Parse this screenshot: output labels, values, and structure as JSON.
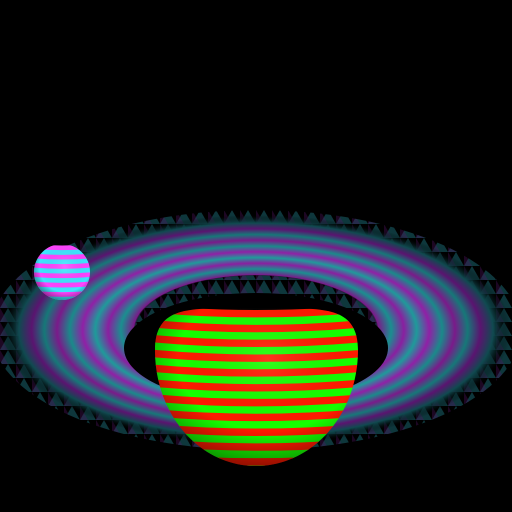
{
  "scene": {
    "background": "#000000",
    "planet": {
      "band_colors": [
        "#ff1a00",
        "#16ff00"
      ],
      "band_count": 11
    },
    "rings": {
      "band_colors": [
        "#9a1fb0",
        "#1a9a9a"
      ],
      "band_count": 9
    },
    "moon": {
      "band_colors": [
        "#ff44ff",
        "#3fe6ff"
      ],
      "band_count": 6
    }
  }
}
